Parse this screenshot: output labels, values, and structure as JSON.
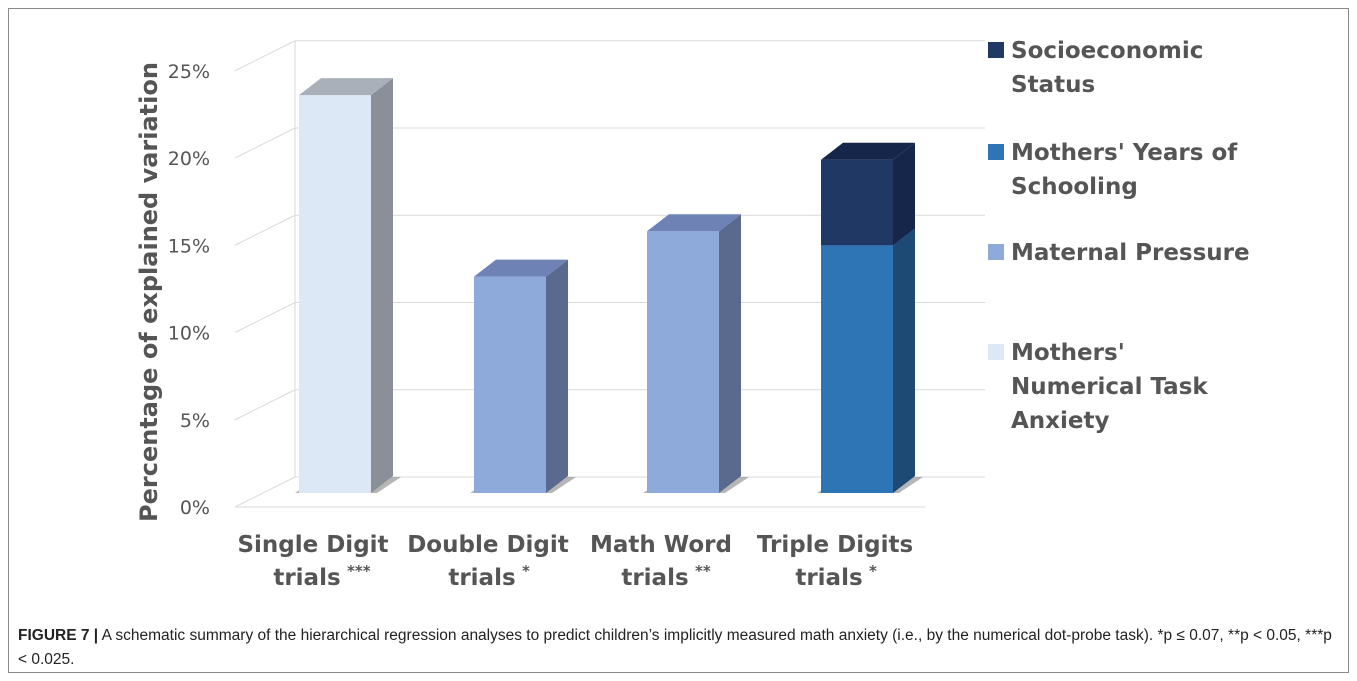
{
  "chart_data": {
    "type": "bar",
    "stacked": true,
    "three_d": true,
    "categories": [
      "Single Digit trials",
      "Double Digit trials",
      "Math Word trials",
      "Triple Digits trials"
    ],
    "category_labels": [
      {
        "line1": "Single Digit",
        "line2": "trials",
        "sig": "***"
      },
      {
        "line1": "Double Digit",
        "line2": "trials",
        "sig": "*"
      },
      {
        "line1": "Math Word",
        "line2": "trials",
        "sig": "**"
      },
      {
        "line1": "Triple Digits",
        "line2": "trials",
        "sig": "*"
      }
    ],
    "series": [
      {
        "name": "Mothers' Numerical Task Anxiety",
        "legend_lines": [
          "Mothers'",
          "Numerical Task",
          "Anxiety"
        ],
        "values": [
          22.8,
          0,
          0,
          0
        ],
        "color": "#dde8f7",
        "side_color": "#8b9098",
        "top_color": "#a9b0ba"
      },
      {
        "name": "Maternal Pressure",
        "legend_lines": [
          "Maternal Pressure"
        ],
        "values": [
          0,
          12.4,
          15.0,
          0
        ],
        "color": "#8eaadb",
        "side_color": "#5a6a8e",
        "top_color": "#6e82b5"
      },
      {
        "name": "Mothers' Years of Schooling",
        "legend_lines": [
          "Mothers' Years of",
          "Schooling"
        ],
        "values": [
          0,
          0,
          0,
          14.2
        ],
        "color": "#2e75b6",
        "side_color": "#1d4a75",
        "top_color": "#1f4e79"
      },
      {
        "name": "Socioeconomic Status",
        "legend_lines": [
          "Socioeconomic",
          "Status"
        ],
        "values": [
          0,
          0,
          0,
          4.9
        ],
        "color": "#203864",
        "side_color": "#15264a",
        "top_color": "#15264a"
      }
    ],
    "legend_order": [
      3,
      2,
      1,
      0
    ],
    "ylabel": "Percentage of explained variation",
    "yticks": [
      "0%",
      "5%",
      "10%",
      "15%",
      "20%",
      "25%"
    ],
    "ytick_values": [
      0,
      5,
      10,
      15,
      20,
      25
    ],
    "ylim": [
      0,
      25
    ],
    "grid": true,
    "legend_position": "right"
  },
  "caption": {
    "figure_label": "FIGURE 7 |",
    "text": "A schematic summary of the hierarchical regression analyses to predict children’s implicitly measured math anxiety (i.e., by the numerical dot-probe task). *p ≤ 0.07, **p < 0.05, ***p < 0.025."
  }
}
